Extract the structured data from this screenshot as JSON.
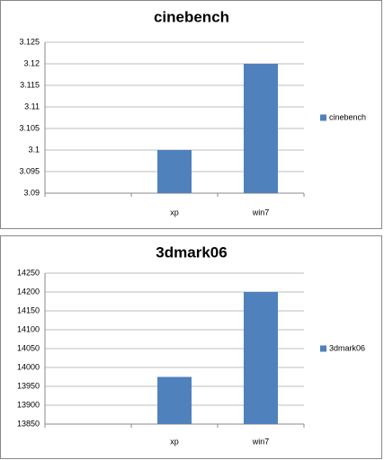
{
  "chart_data": [
    {
      "type": "bar",
      "title": "cinebench",
      "categories": [
        null,
        "xp",
        "win7"
      ],
      "series": [
        {
          "name": "cinebench",
          "color": "#4f81bd",
          "values": [
            null,
            3.1,
            3.12
          ]
        }
      ],
      "ylim": [
        3.09,
        3.125
      ],
      "yticks": [
        3.09,
        3.095,
        3.1,
        3.105,
        3.11,
        3.115,
        3.12,
        3.125
      ],
      "grid": true,
      "legend": "right"
    },
    {
      "type": "bar",
      "title": "3dmark06",
      "categories": [
        null,
        "xp",
        "win7"
      ],
      "series": [
        {
          "name": "3dmark06",
          "color": "#4f81bd",
          "values": [
            null,
            13975,
            14200
          ]
        }
      ],
      "ylim": [
        13850,
        14250
      ],
      "yticks": [
        13850,
        13900,
        13950,
        14000,
        14050,
        14100,
        14150,
        14200,
        14250
      ],
      "grid": true,
      "legend": "right"
    }
  ]
}
